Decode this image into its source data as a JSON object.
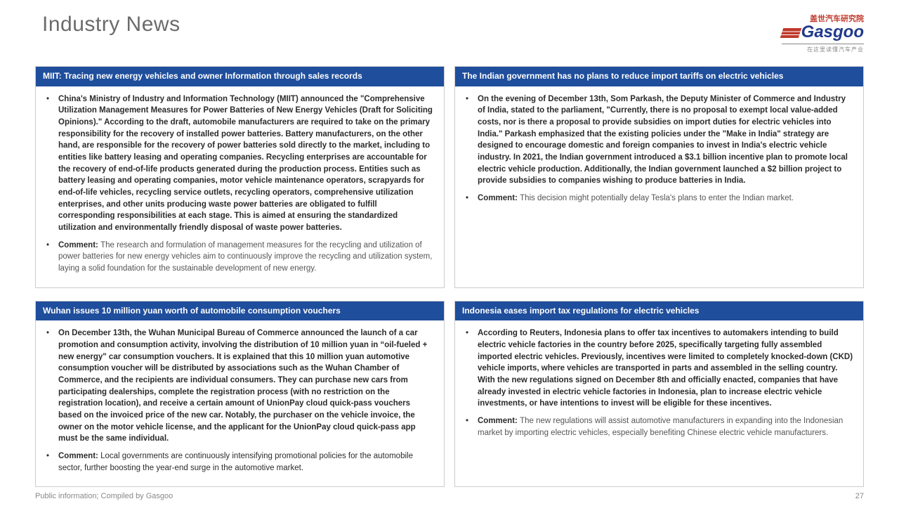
{
  "page": {
    "title": "Industry News",
    "footer_left": "Public information; Compiled by Gasgoo",
    "page_number": "27"
  },
  "logo": {
    "cn": "盖世汽车研究院",
    "main": "Gasgoo",
    "sub": "在这里读懂汽车产业"
  },
  "colors": {
    "header_bg": "#1f4e9c",
    "title_gray": "#6b6b6b",
    "logo_navy": "#203a8a",
    "logo_red": "#c0392b"
  },
  "cards": [
    {
      "title": "MIIT: Tracing new energy vehicles and owner Information through sales records",
      "body": "China's Ministry of Industry and Information Technology (MIIT) announced the \"Comprehensive Utilization Management Measures for Power Batteries of New Energy Vehicles (Draft for Soliciting Opinions).\" According to the draft, automobile manufacturers are required to take on the primary responsibility for the recovery of installed power batteries. Battery manufacturers, on the other hand, are responsible for the recovery of power batteries sold directly to the market, including to entities like battery leasing and operating companies. Recycling enterprises are accountable for the recovery of end-of-life products generated during the production process. Entities such as battery leasing and operating companies, motor vehicle maintenance operators, scrapyards for end-of-life vehicles, recycling service outlets, recycling operators, comprehensive utilization enterprises, and other units producing waste power batteries are obligated to fulfill corresponding responsibilities at each stage. This is aimed at ensuring the standardized utilization and environmentally friendly disposal of waste power batteries.",
      "body_bold": true,
      "comment_label": "Comment: ",
      "comment": "The research and formulation of management measures for the recycling and utilization of power batteries for new energy vehicles aim to continuously improve the recycling and utilization system, laying a solid foundation for the sustainable development of new energy.",
      "comment_gray": true
    },
    {
      "title": "The Indian government   has no plans to reduce import tariffs on electric vehicles",
      "body": "On the evening of December 13th, Som Parkash, the Deputy Minister of Commerce and Industry of India, stated to the parliament, \"Currently, there is no proposal to exempt local value-added costs, nor is there a proposal to provide subsidies on import duties for electric vehicles into India.\" Parkash emphasized that the existing policies under the \"Make in India\" strategy are designed to encourage domestic and foreign companies to invest in India's electric vehicle industry. In 2021, the Indian government introduced a $3.1 billion incentive plan to promote local electric vehicle production. Additionally, the Indian government launched a $2 billion project to provide subsidies to companies wishing to produce batteries in India.",
      "body_bold": true,
      "comment_label": "Comment: ",
      "comment": "This decision might potentially delay Tesla's plans to enter the Indian market.",
      "comment_gray": true
    },
    {
      "title": "Wuhan issues 10 million yuan worth of automobile consumption vouchers",
      "body": "On December 13th, the Wuhan Municipal Bureau of Commerce announced the launch of a car promotion and consumption activity, involving the distribution of 10 million yuan in “oil-fueled + new energy\" car consumption vouchers. It is explained that this 10 million yuan automotive consumption voucher will be distributed by associations such as the Wuhan Chamber of Commerce, and the recipients are individual consumers. They can purchase new cars from participating dealerships, complete the registration process (with no restriction on the registration location), and receive a certain amount of UnionPay cloud quick-pass vouchers based on the invoiced price of the new car. Notably, the purchaser on the vehicle invoice, the owner on the motor vehicle license, and the applicant for the UnionPay cloud quick-pass app must be the same individual.",
      "body_bold": true,
      "comment_label": "Comment: ",
      "comment": "Local governments are continuously intensifying promotional policies for the automobile sector, further boosting the year-end surge in the automotive market.",
      "comment_gray": false
    },
    {
      "title": "Indonesia eases import tax regulations for electric vehicles",
      "body": "According to Reuters, Indonesia plans to offer tax incentives to automakers intending to build electric vehicle factories in the country before 2025, specifically targeting fully assembled imported electric vehicles. Previously, incentives were limited to completely knocked-down (CKD) vehicle imports, where vehicles are transported in parts and assembled in the selling country. With the new regulations signed on December 8th and officially enacted, companies that have already invested in electric vehicle factories in Indonesia, plan to increase electric vehicle investments, or have intentions to invest will be eligible for these incentives.",
      "body_bold": true,
      "comment_label": "Comment: ",
      "comment": "The new regulations will assist automotive manufacturers in expanding into the Indonesian market by importing electric vehicles, especially benefiting Chinese electric vehicle manufacturers.",
      "comment_gray": true
    }
  ]
}
